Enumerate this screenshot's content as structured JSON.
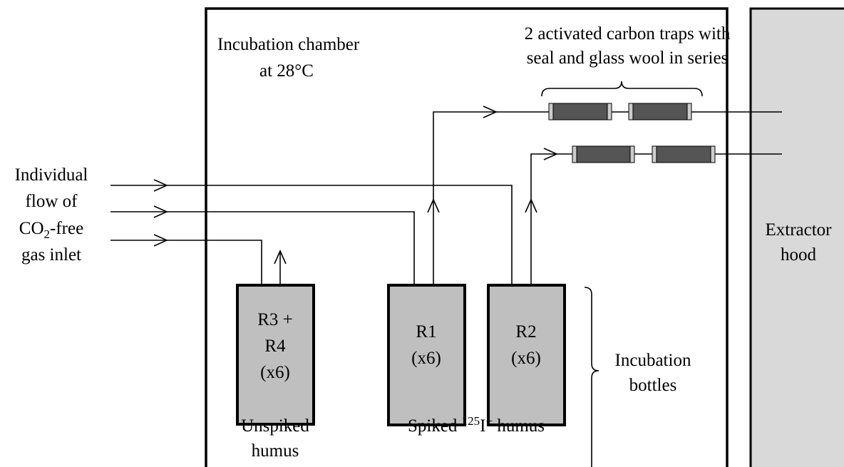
{
  "chamber": {
    "lines": [
      "Incubation chamber",
      "at 28°C"
    ]
  },
  "traps": {
    "lines": [
      "2 activated carbon traps with",
      "seal and glass wool in series"
    ]
  },
  "inlet": {
    "line1": "Individual",
    "line2": "flow of",
    "line3": {
      "base": "CO",
      "sub": "2",
      "rest": "-free"
    },
    "line4": "gas inlet"
  },
  "hood": {
    "lines": [
      "Extractor",
      "hood"
    ]
  },
  "bottles": [
    {
      "lines": [
        "R3 +",
        "R4",
        "(x6)"
      ]
    },
    {
      "lines": [
        "R1",
        "(x6)"
      ]
    },
    {
      "lines": [
        "R2",
        "(x6)"
      ]
    }
  ],
  "unspiked": {
    "lines": [
      "Unspiked",
      "humus"
    ]
  },
  "spiked": {
    "before": "Spiked ",
    "sup": "125",
    "mid": "I",
    "sup2": "−",
    "after": " humus"
  },
  "bottles_label": {
    "lines": [
      "Incubation",
      "bottles"
    ]
  }
}
